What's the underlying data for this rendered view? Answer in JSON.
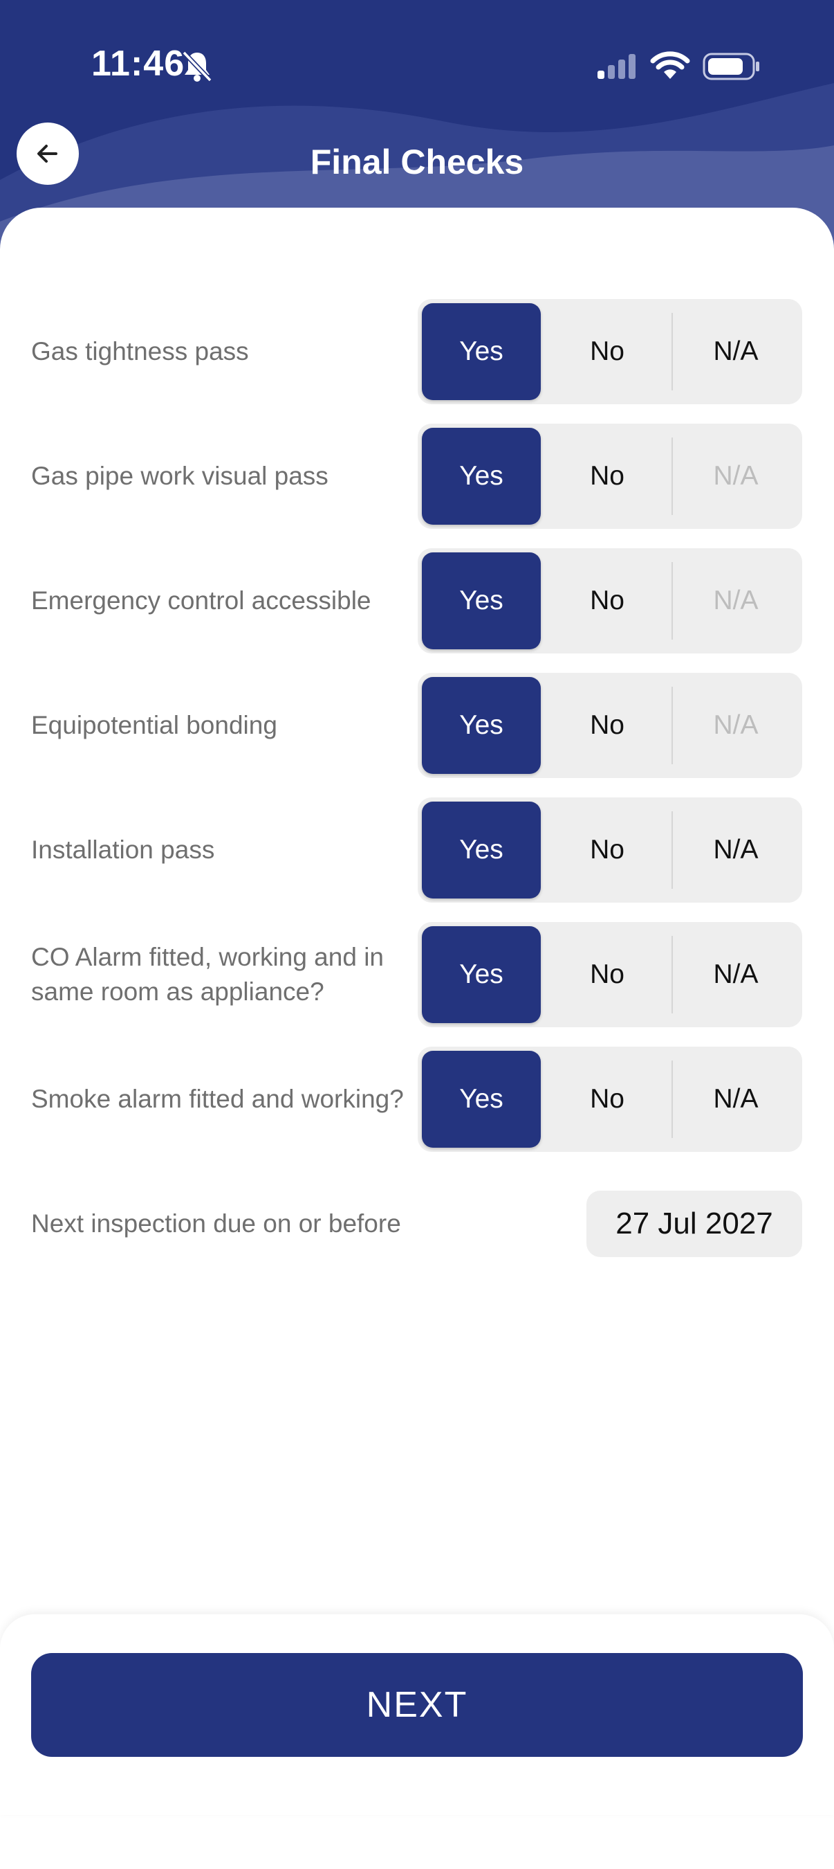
{
  "status_bar": {
    "time": "11:46",
    "icons": [
      "bell-muted-icon",
      "cellular-signal-icon",
      "wifi-icon",
      "battery-icon"
    ]
  },
  "header": {
    "title": "Final Checks",
    "back_icon": "arrow-left-icon",
    "background_color": "#24347f"
  },
  "options": {
    "yes": "Yes",
    "no": "No",
    "na": "N/A"
  },
  "checks": [
    {
      "label": "Gas tightness pass",
      "selected": "Yes",
      "na_disabled": false
    },
    {
      "label": "Gas pipe work visual pass",
      "selected": "Yes",
      "na_disabled": true
    },
    {
      "label": "Emergency control accessible",
      "selected": "Yes",
      "na_disabled": true
    },
    {
      "label": "Equipotential bonding",
      "selected": "Yes",
      "na_disabled": true
    },
    {
      "label": "Installation pass",
      "selected": "Yes",
      "na_disabled": false
    },
    {
      "label": "CO Alarm fitted, working and in same room as appliance?",
      "selected": "Yes",
      "na_disabled": false
    },
    {
      "label": "Smoke alarm fitted and working?",
      "selected": "Yes",
      "na_disabled": false
    }
  ],
  "next_inspection": {
    "label": "Next inspection due on or before",
    "date": "27 Jul 2027"
  },
  "footer": {
    "next_label": "NEXT"
  },
  "colors": {
    "accent": "#24347f",
    "segment_bg": "#eeeeee",
    "label_text": "#6f6f6f"
  }
}
